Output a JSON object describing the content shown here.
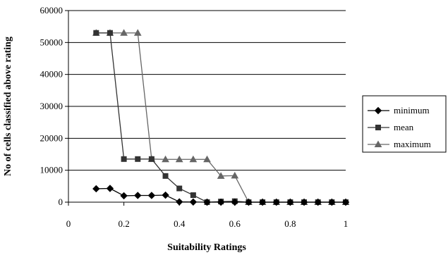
{
  "chart_data": {
    "type": "line",
    "title": "",
    "xlabel": "Suitability Ratings",
    "ylabel": "No of cells classified above rating",
    "xlim": [
      0,
      1
    ],
    "ylim": [
      0,
      60000
    ],
    "x_ticks": [
      "0",
      "0.2",
      "0.4",
      "0.6",
      "0.8",
      "1"
    ],
    "y_ticks": [
      "0",
      "10000",
      "20000",
      "30000",
      "40000",
      "50000",
      "60000"
    ],
    "grid": "horizontal",
    "legend_position": "right",
    "x": [
      0.1,
      0.15,
      0.2,
      0.25,
      0.3,
      0.35,
      0.4,
      0.45,
      0.5,
      0.55,
      0.6,
      0.65,
      0.7,
      0.75,
      0.8,
      0.85,
      0.9,
      0.95,
      1.0
    ],
    "series": [
      {
        "name": "minimum",
        "marker": "diamond",
        "color": "#000000",
        "values": [
          4200,
          4300,
          2000,
          2100,
          2100,
          2200,
          100,
          50,
          0,
          0,
          0,
          0,
          0,
          0,
          0,
          0,
          0,
          0,
          0
        ]
      },
      {
        "name": "mean",
        "marker": "square",
        "color": "#333333",
        "values": [
          53000,
          53000,
          13500,
          13500,
          13500,
          8200,
          4300,
          2200,
          0,
          200,
          300,
          0,
          0,
          0,
          0,
          0,
          0,
          0,
          0
        ]
      },
      {
        "name": "maximum",
        "marker": "triangle",
        "color": "#666666",
        "values": [
          53000,
          53000,
          53000,
          53000,
          13500,
          13400,
          13400,
          13400,
          13400,
          8200,
          8300,
          0,
          0,
          0,
          0,
          0,
          0,
          0,
          0
        ]
      }
    ]
  }
}
